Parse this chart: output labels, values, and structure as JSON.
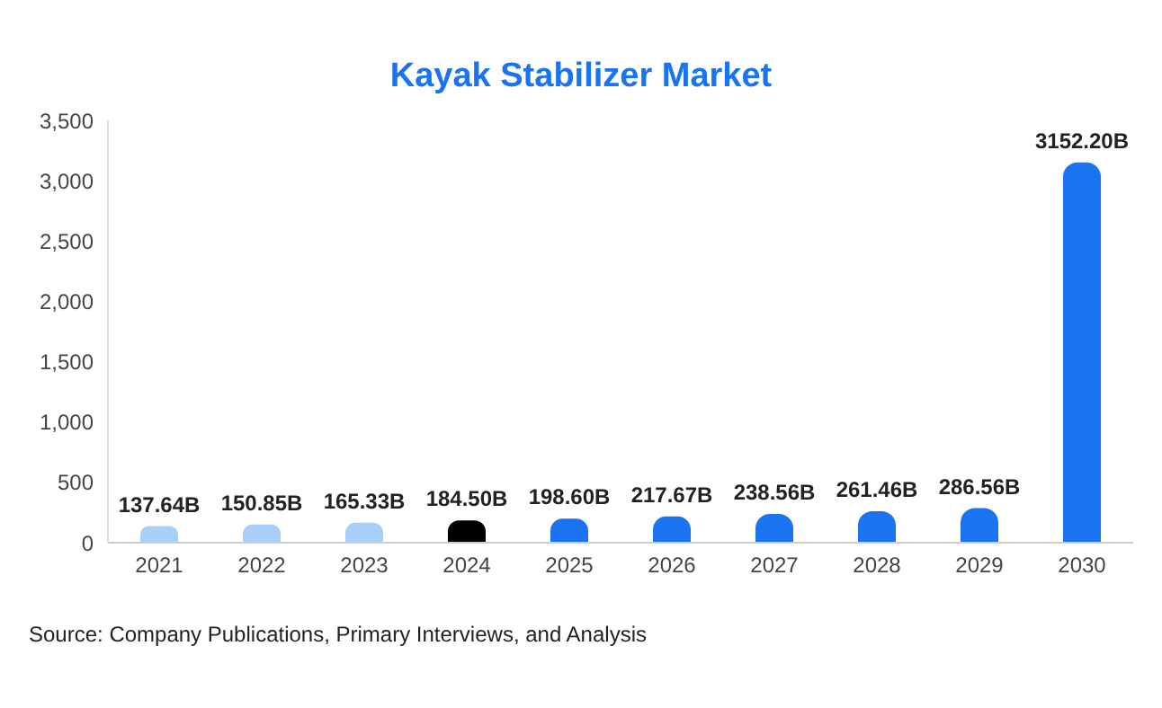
{
  "chart_data": {
    "type": "bar",
    "title": "Kayak Stabilizer Market",
    "categories": [
      "2021",
      "2022",
      "2023",
      "2024",
      "2025",
      "2026",
      "2027",
      "2028",
      "2029",
      "2030"
    ],
    "values": [
      137.64,
      150.85,
      165.33,
      184.5,
      198.6,
      217.67,
      238.56,
      261.46,
      286.56,
      3152.2
    ],
    "colors": [
      "#a8cff8",
      "#a8cff8",
      "#a8cff8",
      "#000000",
      "#1a73f0",
      "#1a73f0",
      "#1a73f0",
      "#1a73f0",
      "#1a73f0",
      "#1a73f0"
    ],
    "value_labels": [
      "137.64B",
      "150.85B",
      "165.33B",
      "184.50B",
      "198.60B",
      "217.67B",
      "238.56B",
      "261.46B",
      "286.56B",
      "3152.20B"
    ],
    "ylim": [
      0,
      3500
    ],
    "yticks": [
      {
        "value": 0,
        "label": "0"
      },
      {
        "value": 500,
        "label": "500"
      },
      {
        "value": 1000,
        "label": "1,000"
      },
      {
        "value": 1500,
        "label": "1,500"
      },
      {
        "value": 2000,
        "label": "2,000"
      },
      {
        "value": 2500,
        "label": "2,500"
      },
      {
        "value": 3000,
        "label": "3,000"
      },
      {
        "value": 3500,
        "label": "3,500"
      }
    ],
    "grid": false,
    "annotations": [
      "Source: Company Publications, Primary Interviews, and Analysis"
    ]
  }
}
